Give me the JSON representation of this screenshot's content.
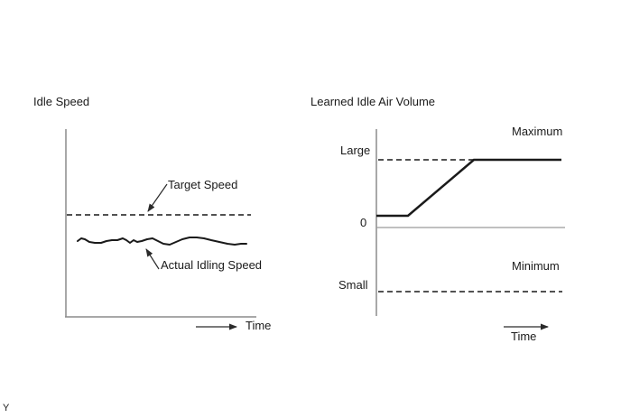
{
  "figure": {
    "footer_mark": "Y"
  },
  "colors": {
    "background": "#ffffff",
    "text": "#1a1a1a",
    "axis": "#8c8c8c",
    "grid": "#9a9a9a",
    "line": "#1a1a1a",
    "dashed": "#3a3a3a",
    "arrow": "#2a2a2a"
  },
  "charts": [
    {
      "title": "Idle Speed",
      "time_label": "Time",
      "annotations": {
        "target": "Target Speed",
        "actual": "Actual Idling Speed"
      }
    },
    {
      "title": "Learned Idle Air Volume",
      "time_label": "Time",
      "y_labels": {
        "large": "Large",
        "zero": "0",
        "small": "Small"
      },
      "annotations": {
        "maximum": "Maximum",
        "minimum": "Minimum"
      }
    }
  ],
  "chart_data": [
    {
      "type": "line",
      "title": "Idle Speed",
      "xlabel": "Time",
      "ylabel": "Idle Speed",
      "axes_numeric": false,
      "grid": false,
      "series": [
        {
          "name": "Target Speed",
          "style": "dashed",
          "description": "constant horizontal reference line",
          "x": [
            0,
            1
          ],
          "y_relative": [
            1.0,
            1.0
          ]
        },
        {
          "name": "Actual Idling Speed",
          "style": "solid",
          "description": "fluctuates slightly, remains below Target Speed",
          "x": [
            0,
            0.1,
            0.2,
            0.3,
            0.35,
            0.4,
            0.5,
            0.6,
            0.7,
            0.8,
            0.9,
            1.0
          ],
          "y_relative": [
            0.74,
            0.73,
            0.74,
            0.76,
            0.72,
            0.75,
            0.76,
            0.71,
            0.78,
            0.76,
            0.72,
            0.73
          ]
        }
      ]
    },
    {
      "type": "line",
      "title": "Learned Idle Air Volume",
      "xlabel": "Time",
      "ylabel": "Learned Idle Air Volume",
      "y_tick_labels": [
        "Large",
        "0",
        "Small"
      ],
      "annotations": [
        "Maximum",
        "Minimum"
      ],
      "grid": false,
      "series": [
        {
          "name": "Learned Idle Air Volume",
          "style": "solid",
          "description": "starts slightly above 0, ramps up linearly, then saturates at the Large / Maximum limit",
          "x": [
            0,
            0.17,
            0.52,
            1.0
          ],
          "y_units_large": [
            0.18,
            0.18,
            1.0,
            1.0
          ]
        },
        {
          "name": "Maximum limit",
          "style": "dashed",
          "at_level": "Large",
          "y_units_large": [
            1.0,
            1.0
          ]
        },
        {
          "name": "Minimum limit",
          "style": "dashed",
          "at_level": "Small",
          "y_units_large": [
            -1.1,
            -1.1
          ]
        }
      ]
    }
  ],
  "geometry": {
    "lines": [
      {
        "name": "left-y-axis",
        "color": "axis",
        "width": 1.5,
        "points": [
          [
            73,
            143
          ],
          [
            73,
            351
          ]
        ]
      },
      {
        "name": "left-x-axis",
        "color": "axis",
        "width": 1.5,
        "points": [
          [
            72,
            351
          ],
          [
            284,
            351
          ]
        ]
      },
      {
        "name": "left-target-speed-line",
        "color": "dashed",
        "width": 1.8,
        "dash": "6,4",
        "points": [
          [
            74,
            238
          ],
          [
            278,
            238
          ]
        ]
      },
      {
        "name": "left-actual-speed-line",
        "color": "line",
        "width": 2,
        "join": "round",
        "points": [
          [
            86,
            267
          ],
          [
            90,
            264
          ],
          [
            94,
            265
          ],
          [
            99,
            268
          ],
          [
            105,
            269
          ],
          [
            112,
            269
          ],
          [
            118,
            267
          ],
          [
            124,
            266
          ],
          [
            130,
            266
          ],
          [
            136,
            264
          ],
          [
            140,
            266
          ],
          [
            144,
            269
          ],
          [
            148,
            266
          ],
          [
            152,
            268
          ],
          [
            157,
            267
          ],
          [
            163,
            265
          ],
          [
            169,
            264
          ],
          [
            175,
            267
          ],
          [
            181,
            270
          ],
          [
            188,
            271
          ],
          [
            195,
            268
          ],
          [
            202,
            265
          ],
          [
            210,
            263
          ],
          [
            218,
            263
          ],
          [
            226,
            264
          ],
          [
            234,
            266
          ],
          [
            243,
            268
          ],
          [
            252,
            270
          ],
          [
            260,
            271
          ],
          [
            267,
            270
          ],
          [
            273,
            270
          ]
        ]
      },
      {
        "name": "left-target-arrow",
        "color": "arrow",
        "width": 1.2,
        "arrow": true,
        "points": [
          [
            185,
            204
          ],
          [
            164,
            234
          ]
        ]
      },
      {
        "name": "left-actual-arrow",
        "color": "arrow",
        "width": 1.2,
        "arrow": true,
        "points": [
          [
            176,
            298
          ],
          [
            162,
            276
          ]
        ]
      },
      {
        "name": "left-time-arrow",
        "color": "arrow",
        "width": 1.2,
        "arrow": true,
        "points": [
          [
            217,
            362
          ],
          [
            262,
            362
          ]
        ]
      },
      {
        "name": "right-y-axis",
        "color": "axis",
        "width": 1.5,
        "points": [
          [
            417,
            143
          ],
          [
            417,
            350
          ]
        ]
      },
      {
        "name": "right-zero-line",
        "color": "grid",
        "width": 1.2,
        "points": [
          [
            417,
            252
          ],
          [
            626,
            252
          ]
        ]
      },
      {
        "name": "right-maximum-line",
        "color": "dashed",
        "width": 1.8,
        "dash": "6,4",
        "points": [
          [
            419,
            177
          ],
          [
            527,
            177
          ]
        ]
      },
      {
        "name": "right-minimum-line",
        "color": "dashed",
        "width": 1.8,
        "dash": "6,4",
        "points": [
          [
            419,
            323
          ],
          [
            623,
            323
          ]
        ]
      },
      {
        "name": "right-learned-volume-line",
        "color": "line",
        "width": 2.5,
        "points": [
          [
            417,
            239
          ],
          [
            452,
            239
          ],
          [
            525,
            177
          ],
          [
            622,
            177
          ]
        ]
      },
      {
        "name": "right-time-arrow",
        "color": "arrow",
        "width": 1.2,
        "arrow": true,
        "points": [
          [
            558,
            362
          ],
          [
            607,
            362
          ]
        ]
      }
    ]
  }
}
